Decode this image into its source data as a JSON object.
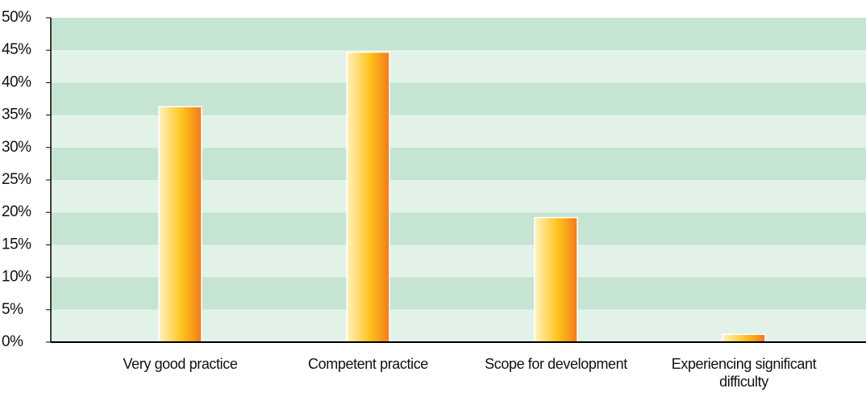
{
  "chart_data": {
    "type": "bar",
    "categories": [
      "Very good practice",
      "Competent practice",
      "Scope for development",
      "Experiencing significant difficulty"
    ],
    "values": [
      36.3,
      44.7,
      19.2,
      1.2
    ],
    "color": [
      "#fff3c0",
      "#ffc21a",
      "#f07a1e"
    ],
    "ylim": [
      0,
      50
    ],
    "yticks": [
      {
        "value": 0,
        "label": "0%"
      },
      {
        "value": 5,
        "label": "5%"
      },
      {
        "value": 10,
        "label": "10%"
      },
      {
        "value": 15,
        "label": "15%"
      },
      {
        "value": 20,
        "label": "20%"
      },
      {
        "value": 25,
        "label": "25%"
      },
      {
        "value": 30,
        "label": "30%"
      },
      {
        "value": 35,
        "label": "35%"
      },
      {
        "value": 40,
        "label": "40%"
      },
      {
        "value": 45,
        "label": "45%"
      },
      {
        "value": 50,
        "label": "50%"
      }
    ],
    "grid": true
  }
}
